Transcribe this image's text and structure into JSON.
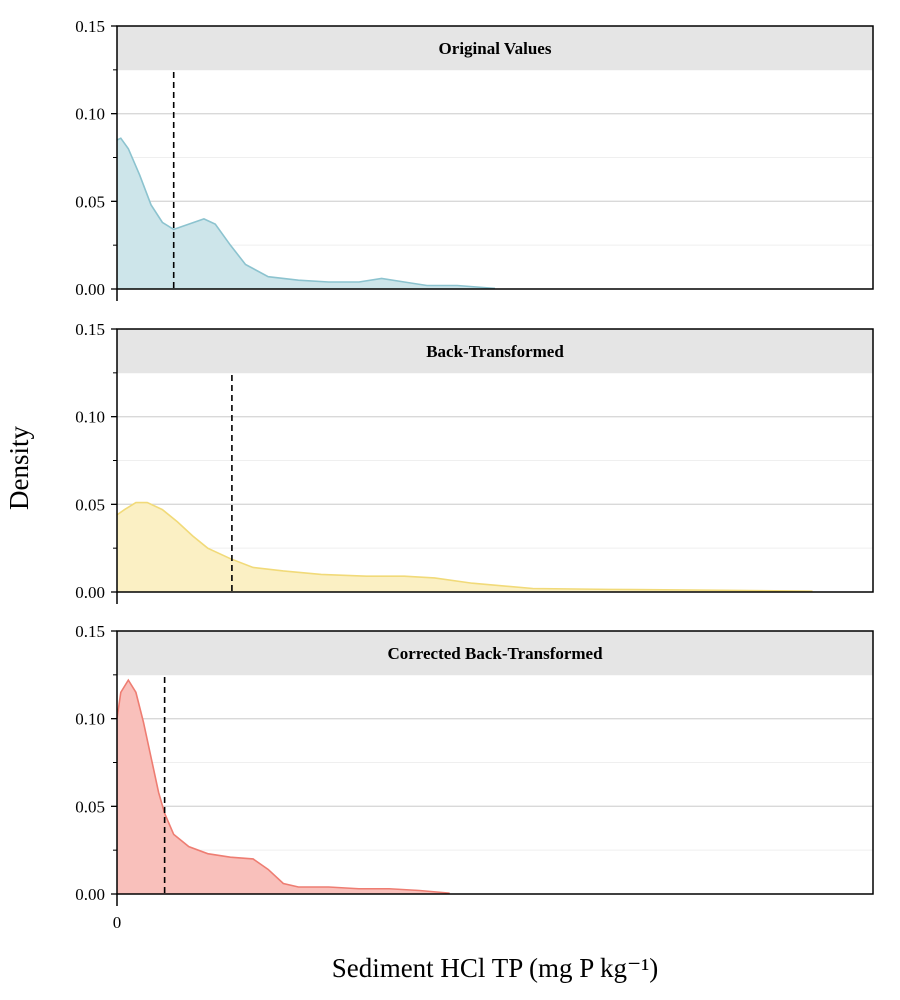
{
  "chart_data": {
    "type": "area",
    "layout": "faceted-vertical",
    "ylabel": "Density",
    "xlabel": "Sediment HCl TP (mg P kg⁻¹)",
    "x_tick_labels": [
      {
        "x": 0,
        "label": "0"
      }
    ],
    "xlim": [
      0,
      100
    ],
    "ylim": [
      0,
      0.15
    ],
    "y_ticks": [
      0.0,
      0.05,
      0.1,
      0.15
    ],
    "y_tick_labels": [
      "0.00",
      "0.05",
      "0.10",
      "0.15"
    ],
    "grid": true,
    "legend": "none",
    "panels": [
      {
        "title": "Original Values",
        "fill": "#cde5ea",
        "line": "#8cc3cf",
        "reference_line_x": 7.5,
        "x": [
          0,
          0.5,
          1.5,
          3,
          4.5,
          6,
          7.5,
          9.5,
          11.5,
          13,
          15,
          17,
          20,
          24,
          28,
          32,
          35,
          38,
          41,
          45,
          50
        ],
        "density": [
          0.085,
          0.086,
          0.08,
          0.065,
          0.048,
          0.038,
          0.034,
          0.037,
          0.04,
          0.037,
          0.025,
          0.014,
          0.007,
          0.005,
          0.004,
          0.004,
          0.006,
          0.004,
          0.002,
          0.002,
          0.0003
        ]
      },
      {
        "title": "Back-Transformed",
        "fill": "#fbf0c4",
        "line": "#f1da79",
        "reference_line_x": 15.2,
        "x": [
          0,
          1,
          2.5,
          4,
          6,
          8,
          10,
          12,
          15,
          18,
          22,
          27,
          33,
          38,
          42,
          47,
          55,
          65,
          80,
          92
        ],
        "density": [
          0.044,
          0.047,
          0.051,
          0.051,
          0.047,
          0.04,
          0.032,
          0.025,
          0.019,
          0.014,
          0.012,
          0.01,
          0.009,
          0.009,
          0.008,
          0.005,
          0.002,
          0.0015,
          0.001,
          0.0005
        ]
      },
      {
        "title": "Corrected Back-Transformed",
        "fill": "#f9c0bb",
        "line": "#ee7d72",
        "reference_line_x": 6.3,
        "x": [
          0,
          0.5,
          1.5,
          2.5,
          3.5,
          4.5,
          5.5,
          6.3,
          7.5,
          9.5,
          12,
          15,
          18,
          20,
          22,
          24,
          28,
          32,
          36,
          40,
          44
        ],
        "density": [
          0.1,
          0.115,
          0.122,
          0.115,
          0.098,
          0.078,
          0.058,
          0.046,
          0.034,
          0.027,
          0.023,
          0.021,
          0.02,
          0.014,
          0.006,
          0.004,
          0.004,
          0.003,
          0.003,
          0.002,
          0.0005
        ]
      }
    ]
  }
}
